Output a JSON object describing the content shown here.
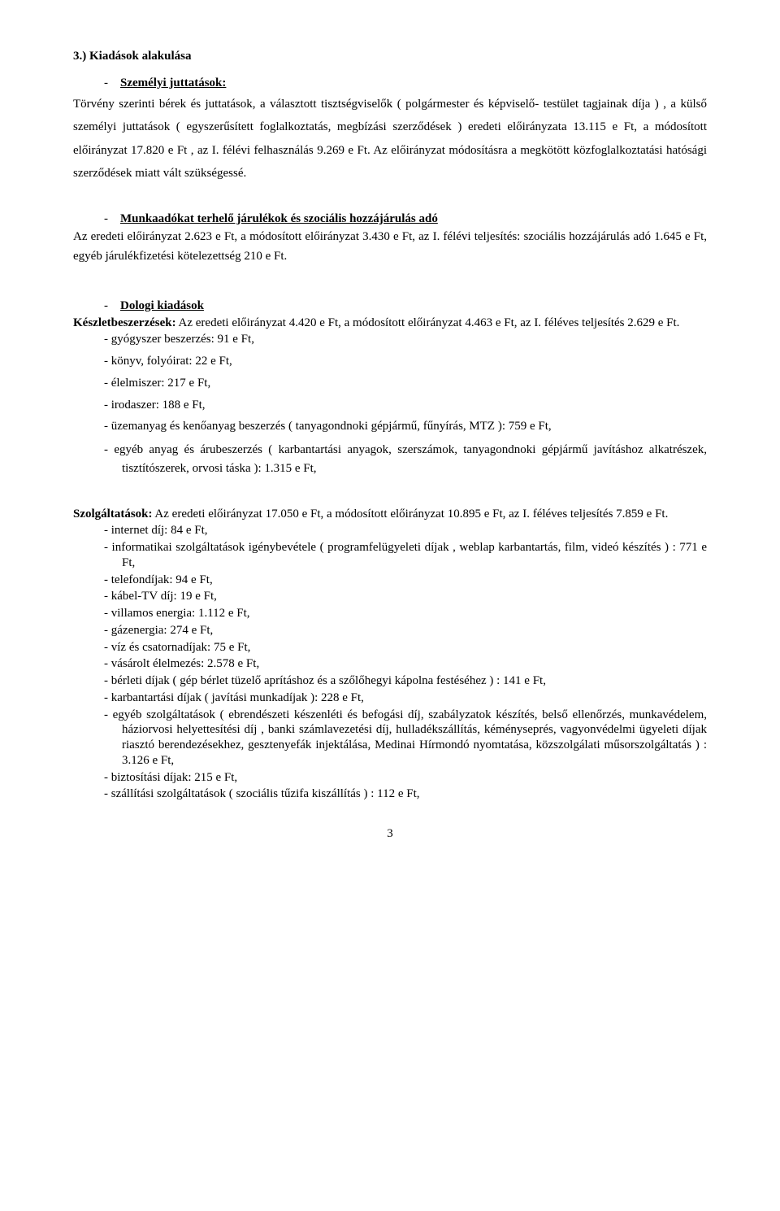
{
  "h1": "3.) Kiadások alakulása",
  "sec1_title_dash": "-",
  "sec1_title": "Személyi juttatások:",
  "sec1_p1": "Törvény szerinti bérek és juttatások, a választott tisztségviselők ( polgármester és képviselő- testület tagjainak díja ) , a külső személyi juttatások ( egyszerűsített foglalkoztatás, megbízási szerződések ) eredeti előirányzata 13.115 e Ft, a módosított előirányzat 17.820 e Ft , az I. félévi felhasználás 9.269 e Ft. Az előirányzat módosításra a megkötött közfoglalkoztatási hatósági szerződések miatt vált szükségessé.",
  "sec2_title_dash": "-",
  "sec2_title": "Munkaadókat terhelő járulékok és szociális hozzájárulás adó",
  "sec2_p1": "Az eredeti előirányzat 2.623 e Ft, a módosított előirányzat 3.430 e  Ft, az I. félévi teljesítés: szociális hozzájárulás adó 1.645 e Ft, egyéb járulékfizetési kötelezettség 210 e Ft.",
  "sec3_title_dash": "-",
  "sec3_title": "Dologi kiadások",
  "sec3_intro_bold": "Készletbeszerzések:",
  "sec3_intro_rest": " Az eredeti előirányzat 4.420 e Ft, a módosított előirányzat 4.463 e Ft, az I. féléves teljesítés 2.629 e Ft.",
  "sec3_items": [
    "gyógyszer beszerzés: 91 e Ft,",
    "könyv, folyóirat: 22 e Ft,",
    "élelmiszer: 217 e Ft,",
    "irodaszer: 188 e Ft,",
    "üzemanyag és kenőanyag beszerzés ( tanyagondnoki gépjármű, fűnyírás, MTZ ):  759 e Ft,",
    "egyéb anyag és árubeszerzés ( karbantartási anyagok, szerszámok, tanyagondnoki gépjármű javításhoz alkatrészek, tisztítószerek, orvosi táska   ): 1.315 e Ft,"
  ],
  "sec4_intro_bold": "Szolgáltatások:",
  "sec4_intro_rest": " Az eredeti előirányzat 17.050 e Ft, a módosított előirányzat 10.895 e Ft, az I. féléves teljesítés 7.859 e Ft.",
  "sec4_items": [
    "internet díj: 84 e Ft,",
    "informatikai szolgáltatások igénybevétele ( programfelügyeleti díjak , weblap karbantartás, film, videó készítés  ) : 771 e Ft,",
    "telefondíjak: 94 e Ft,",
    "kábel-TV díj: 19 e Ft,",
    "villamos energia: 1.112 e Ft,",
    "gázenergia: 274 e Ft,",
    "víz és csatornadíjak: 75 e Ft,",
    "vásárolt élelmezés: 2.578 e Ft,",
    "bérleti díjak ( gép bérlet tüzelő aprításhoz és a szőlőhegyi kápolna festéséhez ) : 141 e Ft,",
    "karbantartási díjak ( javítási munkadíjak ): 228 e Ft,",
    "egyéb szolgáltatások ( ebrendészeti készenléti és befogási díj, szabályzatok készítés, belső ellenőrzés, munkavédelem, háziorvosi helyettesítési díj , banki számlavezetési díj, hulladékszállítás, kéményseprés, vagyonvédelmi ügyeleti díjak riasztó berendezésekhez, gesztenyefák injektálása, Medinai Hírmondó nyomtatása, közszolgálati műsorszolgáltatás ) : 3.126 e Ft,",
    "biztosítási díjak: 215 e Ft,",
    " szállítási szolgáltatások  ( szociális tűzifa kiszállítás ) : 112 e Ft,"
  ],
  "page_number": "3"
}
